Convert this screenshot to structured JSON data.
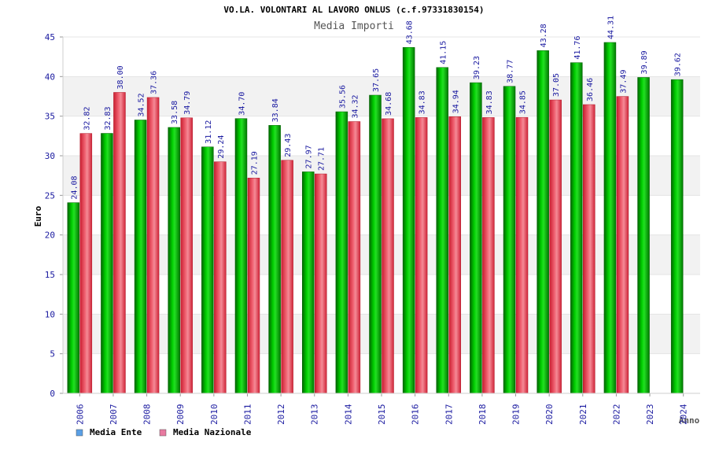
{
  "chart_data": {
    "type": "bar",
    "title": "VO.LA. VOLONTARI AL LAVORO ONLUS (c.f.97331830154)",
    "subtitle": "Media Importi",
    "xlabel": "Anno",
    "ylabel": "Euro",
    "ylim": [
      0,
      45
    ],
    "yticks": [
      "0",
      "5",
      "10",
      "15",
      "20",
      "25",
      "30",
      "35",
      "40",
      "45"
    ],
    "grid": true,
    "legend_position": "bottom-left",
    "categories": [
      "2006",
      "2007",
      "2008",
      "2009",
      "2010",
      "2011",
      "2012",
      "2013",
      "2014",
      "2015",
      "2016",
      "2017",
      "2018",
      "2019",
      "2020",
      "2021",
      "2022",
      "2023",
      "2024"
    ],
    "series": [
      {
        "name": "Media Ente",
        "color": "#00a800",
        "values": [
          24.08,
          32.83,
          34.52,
          33.58,
          31.12,
          34.7,
          33.84,
          27.97,
          35.56,
          37.65,
          43.68,
          41.15,
          39.23,
          38.77,
          43.28,
          41.76,
          44.31,
          39.89,
          39.62
        ],
        "labels": [
          "24.08",
          "32.83",
          "34.52",
          "33.58",
          "31.12",
          "34.70",
          "33.84",
          "27.97",
          "35.56",
          "37.65",
          "43.68",
          "41.15",
          "39.23",
          "38.77",
          "43.28",
          "41.76",
          "44.31",
          "39.89",
          "39.62"
        ]
      },
      {
        "name": "Media Nazionale",
        "color": "#e8283c",
        "values": [
          32.82,
          38.0,
          37.36,
          34.79,
          29.24,
          27.19,
          29.43,
          27.71,
          34.32,
          34.68,
          34.83,
          34.94,
          34.83,
          34.85,
          37.05,
          36.46,
          37.49,
          null,
          null
        ],
        "labels": [
          "32.82",
          "38.00",
          "37.36",
          "34.79",
          "29.24",
          "27.19",
          "29.43",
          "27.71",
          "34.32",
          "34.68",
          "34.83",
          "34.94",
          "34.83",
          "34.85",
          "37.05",
          "36.46",
          "37.49",
          null,
          null
        ]
      }
    ]
  },
  "legend": {
    "items": [
      {
        "label": "Media Ente",
        "swatch_color": "#5aa0e6"
      },
      {
        "label": "Media Nazionale",
        "swatch_color": "#e87aa0"
      }
    ]
  },
  "colors": {
    "title": "#000000",
    "subtitle": "#555555",
    "tick_text": "#1a1aa0",
    "band": "#f2f2f2",
    "grid": "#e4e4e4"
  }
}
